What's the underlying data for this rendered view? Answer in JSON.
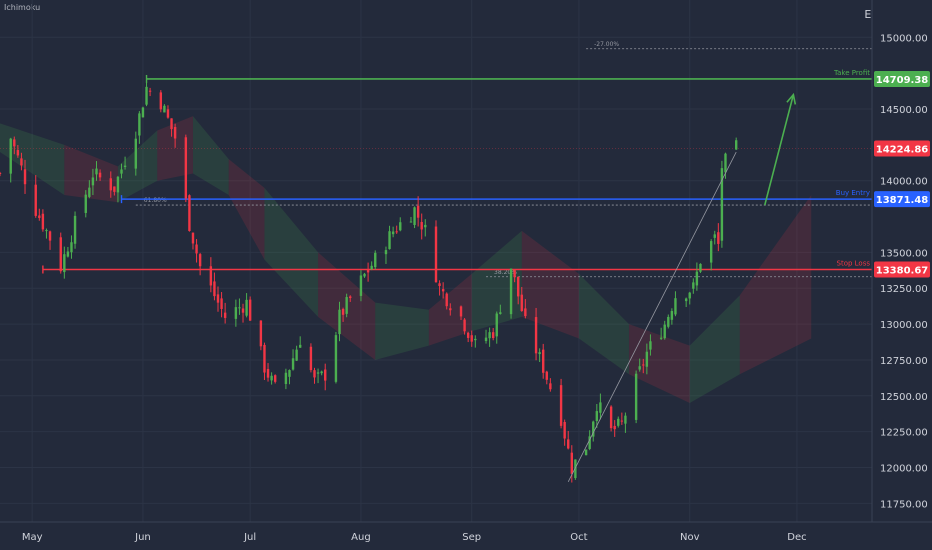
{
  "indicator_label": "Ichimoku",
  "chart_data": {
    "type": "candlestick",
    "currency": "EUR",
    "y_ticks": [
      11750,
      12000,
      12250,
      12500,
      12750,
      13000,
      13250,
      13500,
      14000,
      14500,
      15000
    ],
    "y_range": [
      11620,
      15260
    ],
    "x_ticks": [
      "May",
      "Jun",
      "Jul",
      "Aug",
      "Sep",
      "Oct",
      "Nov",
      "Dec"
    ],
    "x_range": [
      "2022-04-22",
      "2022-12-22"
    ],
    "x_tick_dates": [
      "2022-05-01",
      "2022-06-01",
      "2022-07-01",
      "2022-08-01",
      "2022-09-01",
      "2022-10-01",
      "2022-11-01",
      "2022-12-01"
    ],
    "levels": [
      {
        "name": "Take Profit",
        "value": 14709.38,
        "color": "#4caf50",
        "start": "2022-06-02",
        "style": "solid"
      },
      {
        "name": "Buy Entry",
        "value": 13871.48,
        "color": "#2962ff",
        "start": "2022-05-26",
        "style": "solid"
      },
      {
        "name": "Stop Loss",
        "value": 13380.67,
        "color": "#f23645",
        "start": "2022-05-04",
        "style": "solid"
      }
    ],
    "fib_levels": [
      {
        "label": "-27.00%",
        "value": 14920,
        "start": "2022-10-03"
      },
      {
        "label": "61.80%",
        "value": 13830,
        "start": "2022-05-30"
      },
      {
        "label": "38.20%",
        "value": 13330,
        "start": "2022-09-05"
      }
    ],
    "last_price": {
      "value": 14224.86,
      "color": "#f23645"
    },
    "price_labels": [
      {
        "text": "14709.38",
        "value": 14709.38,
        "color": "#4caf50"
      },
      {
        "text": "14224.86",
        "value": 14224.86,
        "color": "#f23645"
      },
      {
        "text": "13871.48",
        "value": 13871.48,
        "color": "#2962ff"
      },
      {
        "text": "13380.67",
        "value": 13380.67,
        "color": "#f23645"
      }
    ],
    "projection_arrow": {
      "from_date": "2022-11-22",
      "from_value": 13830,
      "to_date": "2022-11-30",
      "to_value": 14600,
      "color": "#4caf50"
    },
    "trend_line": {
      "from_date": "2022-09-28",
      "from_value": 11900,
      "to_date": "2022-11-14",
      "to_value": 14200
    },
    "price_anchors": [
      [
        "2022-04-22",
        14050
      ],
      [
        "2022-04-25",
        14300
      ],
      [
        "2022-05-02",
        13800
      ],
      [
        "2022-05-06",
        13600
      ],
      [
        "2022-05-09",
        13400
      ],
      [
        "2022-05-13",
        13700
      ],
      [
        "2022-05-18",
        14050
      ],
      [
        "2022-05-24",
        13950
      ],
      [
        "2022-05-30",
        14350
      ],
      [
        "2022-06-02",
        14650
      ],
      [
        "2022-06-06",
        14550
      ],
      [
        "2022-06-10",
        14300
      ],
      [
        "2022-06-14",
        13700
      ],
      [
        "2022-06-17",
        13400
      ],
      [
        "2022-06-21",
        13200
      ],
      [
        "2022-06-24",
        13050
      ],
      [
        "2022-06-30",
        13150
      ],
      [
        "2022-07-05",
        12700
      ],
      [
        "2022-07-08",
        12550
      ],
      [
        "2022-07-12",
        12700
      ],
      [
        "2022-07-15",
        12900
      ],
      [
        "2022-07-19",
        12600
      ],
      [
        "2022-07-22",
        12650
      ],
      [
        "2022-07-26",
        13050
      ],
      [
        "2022-08-01",
        13300
      ],
      [
        "2022-08-05",
        13450
      ],
      [
        "2022-08-10",
        13650
      ],
      [
        "2022-08-16",
        13800
      ],
      [
        "2022-08-19",
        13650
      ],
      [
        "2022-08-23",
        13250
      ],
      [
        "2022-08-29",
        13050
      ],
      [
        "2022-09-02",
        12850
      ],
      [
        "2022-09-07",
        12950
      ],
      [
        "2022-09-12",
        13400
      ],
      [
        "2022-09-16",
        13000
      ],
      [
        "2022-09-21",
        12700
      ],
      [
        "2022-09-26",
        12350
      ],
      [
        "2022-09-29",
        12000
      ],
      [
        "2022-10-03",
        12150
      ],
      [
        "2022-10-06",
        12450
      ],
      [
        "2022-10-10",
        12250
      ],
      [
        "2022-10-13",
        12300
      ],
      [
        "2022-10-17",
        12600
      ],
      [
        "2022-10-20",
        12800
      ],
      [
        "2022-10-25",
        13000
      ],
      [
        "2022-10-28",
        13200
      ],
      [
        "2022-11-02",
        13250
      ],
      [
        "2022-11-04",
        13450
      ],
      [
        "2022-11-08",
        13600
      ],
      [
        "2022-11-09",
        13550
      ],
      [
        "2022-11-10",
        14100
      ],
      [
        "2022-11-14",
        14224.86
      ]
    ],
    "cloud_anchors": [
      [
        "2022-04-22",
        14400,
        14200
      ],
      [
        "2022-05-10",
        14250,
        13900
      ],
      [
        "2022-05-25",
        14100,
        13850
      ],
      [
        "2022-06-05",
        14350,
        14000
      ],
      [
        "2022-06-15",
        14450,
        14050
      ],
      [
        "2022-06-25",
        14150,
        13900
      ],
      [
        "2022-07-05",
        13950,
        13450
      ],
      [
        "2022-07-20",
        13500,
        13050
      ],
      [
        "2022-08-05",
        13150,
        12750
      ],
      [
        "2022-08-20",
        13100,
        12850
      ],
      [
        "2022-09-01",
        13350,
        12950
      ],
      [
        "2022-09-15",
        13650,
        13050
      ],
      [
        "2022-10-01",
        13350,
        12900
      ],
      [
        "2022-10-15",
        13000,
        12650
      ],
      [
        "2022-11-01",
        12850,
        12450
      ],
      [
        "2022-11-15",
        13200,
        12650
      ],
      [
        "2022-12-05",
        13900,
        12900
      ]
    ]
  }
}
